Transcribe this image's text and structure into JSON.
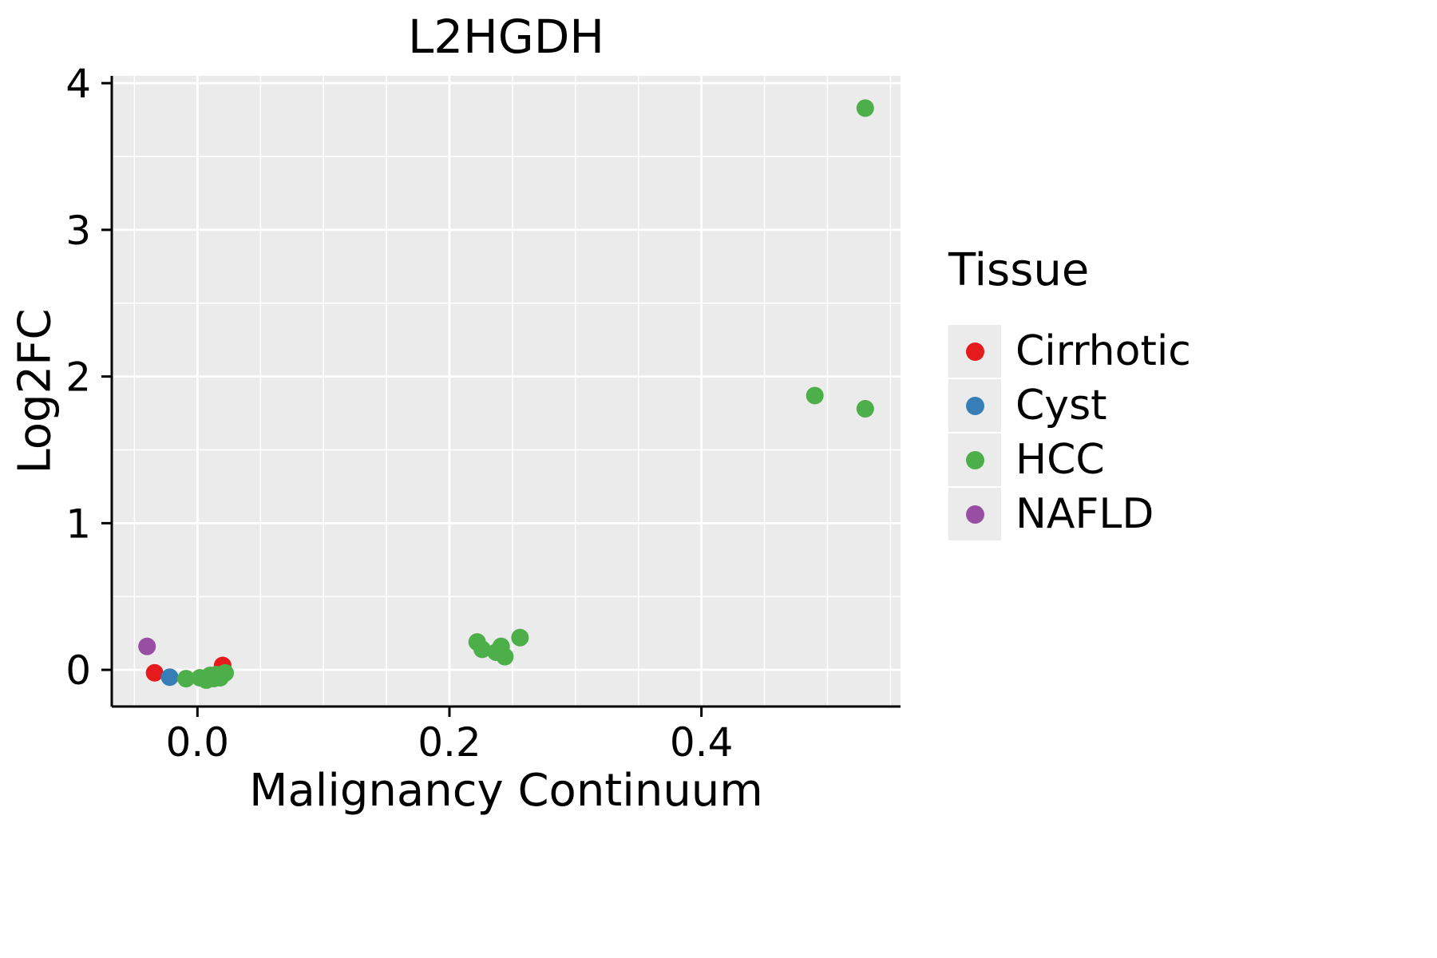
{
  "chart_data": {
    "type": "scatter",
    "title": "L2HGDH",
    "xlabel": "Malignancy Continuum",
    "ylabel": "Log2FC",
    "legend_title": "Tissue",
    "legend_position": "right",
    "grid": true,
    "panel_background": "#ebebeb",
    "grid_color": "#ffffff",
    "xlim": [
      -0.068,
      0.558
    ],
    "ylim": [
      -0.25,
      4.05
    ],
    "x_ticks": [
      0.0,
      0.2,
      0.4
    ],
    "x_tick_labels": [
      "0.0",
      "0.2",
      "0.4"
    ],
    "x_minor_ticks": [
      -0.05,
      0.05,
      0.1,
      0.15,
      0.25,
      0.3,
      0.35,
      0.45,
      0.5,
      0.55
    ],
    "y_ticks": [
      0,
      1,
      2,
      3,
      4
    ],
    "y_tick_labels": [
      "0",
      "1",
      "2",
      "3",
      "4"
    ],
    "y_minor_ticks": [
      0.5,
      1.5,
      2.5,
      3.5
    ],
    "series": [
      {
        "name": "Cirrhotic",
        "color": "#e41a1c",
        "points": [
          [
            -0.034,
            -0.02
          ],
          [
            0.02,
            0.03
          ]
        ]
      },
      {
        "name": "Cyst",
        "color": "#377eb8",
        "points": [
          [
            -0.022,
            -0.05
          ]
        ]
      },
      {
        "name": "HCC",
        "color": "#4daf4a",
        "points": [
          [
            -0.009,
            -0.06
          ],
          [
            0.002,
            -0.054
          ],
          [
            0.007,
            -0.07
          ],
          [
            0.01,
            -0.038
          ],
          [
            0.013,
            -0.059
          ],
          [
            0.015,
            -0.032
          ],
          [
            0.018,
            -0.054
          ],
          [
            0.022,
            -0.021
          ],
          [
            0.222,
            0.19
          ],
          [
            0.226,
            0.14
          ],
          [
            0.237,
            0.12
          ],
          [
            0.241,
            0.16
          ],
          [
            0.244,
            0.09
          ],
          [
            0.256,
            0.22
          ],
          [
            0.49,
            1.87
          ],
          [
            0.53,
            1.78
          ],
          [
            0.53,
            3.83
          ]
        ]
      },
      {
        "name": "NAFLD",
        "color": "#984ea3",
        "points": [
          [
            -0.04,
            0.16
          ]
        ]
      }
    ]
  }
}
